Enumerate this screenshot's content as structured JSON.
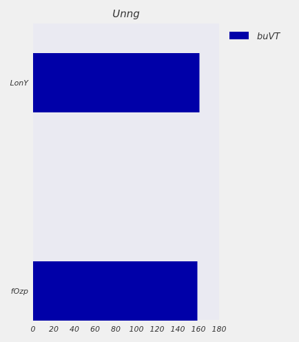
{
  "chart_data": {
    "type": "bar",
    "orientation": "horizontal",
    "title": "Unng",
    "xlabel": "",
    "ylabel": "",
    "categories": [
      "LonY",
      "fOzp"
    ],
    "series": [
      {
        "name": "buVT",
        "values": [
          161,
          159
        ],
        "color": "#0000a8"
      }
    ],
    "xlim": [
      0,
      180
    ],
    "xticks": [
      0,
      20,
      40,
      60,
      80,
      100,
      120,
      140,
      160,
      180
    ],
    "grid": false,
    "legend_position": "top-right (outside plot)",
    "plot_background": "#eaeaf2",
    "figure_background": "#f0f0f0"
  }
}
